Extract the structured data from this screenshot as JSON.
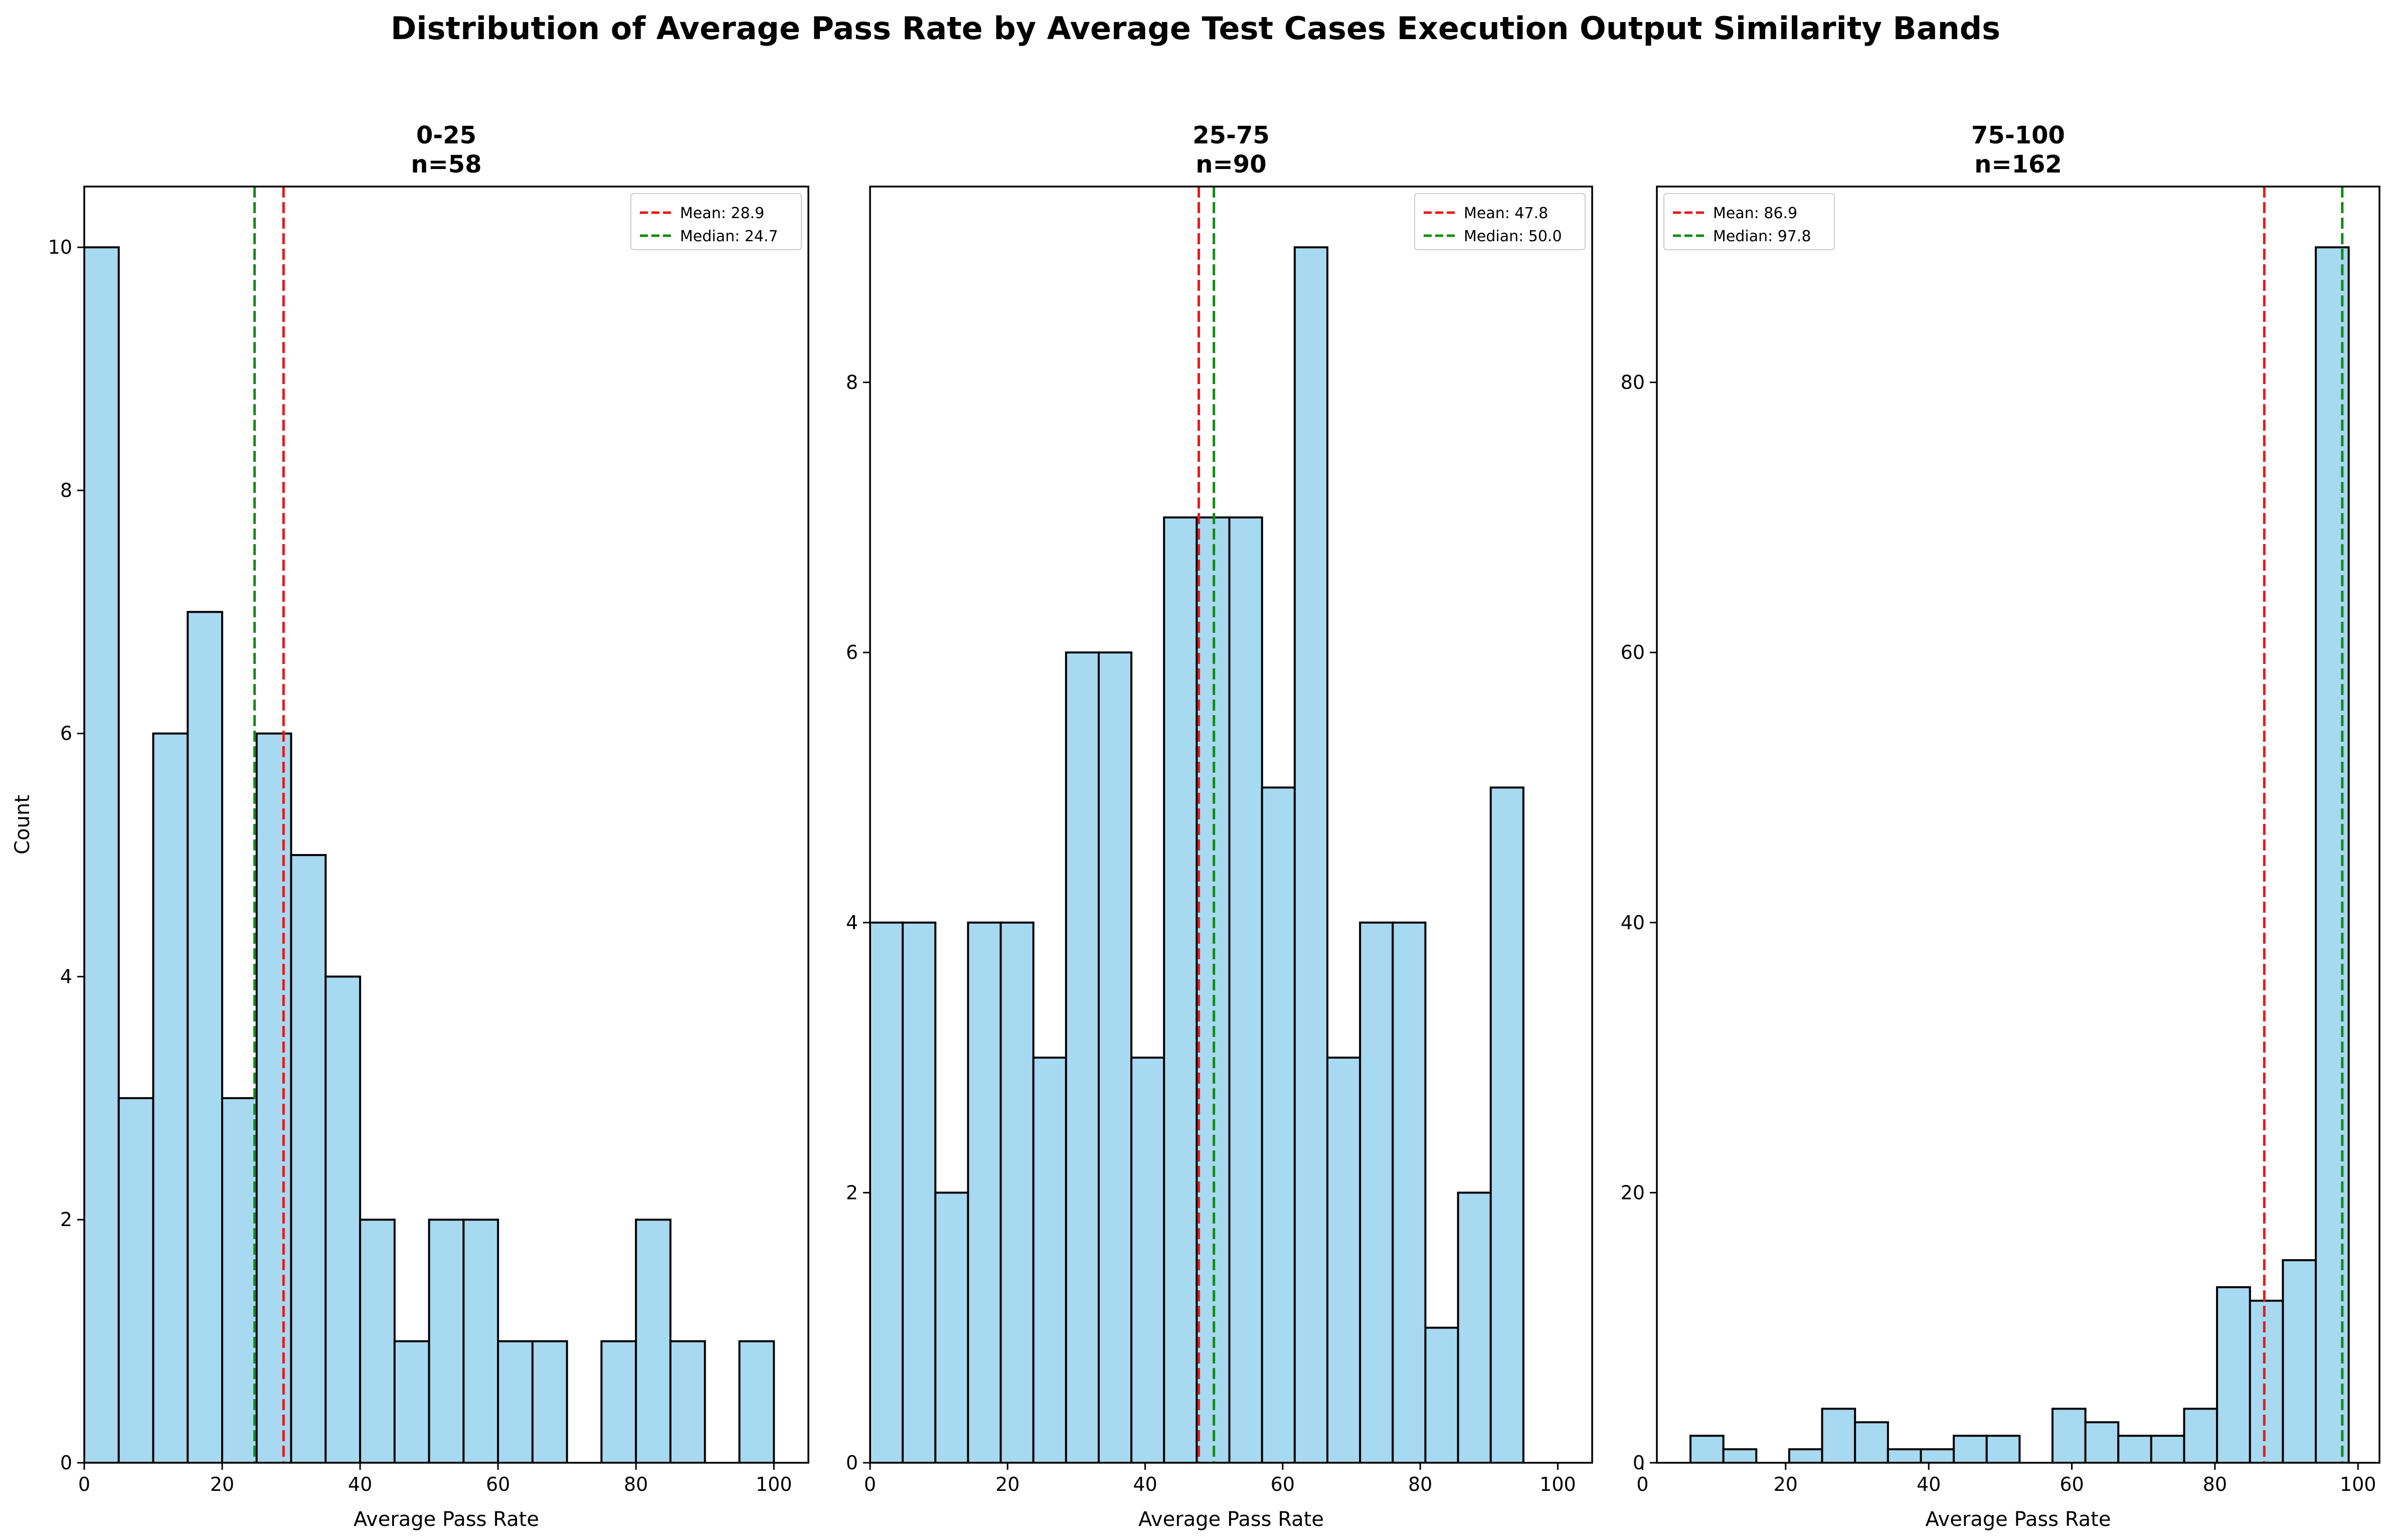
{
  "chart_data": {
    "title": "Distribution of Average Pass Rate by Average Test Cases Execution Output Similarity Bands",
    "panels": [
      {
        "type": "bar",
        "title": "0-25",
        "subtitle": "n=58",
        "xlabel": "Average Pass Rate",
        "ylabel": "Count",
        "xlim": [
          0,
          105
        ],
        "ylim": [
          0,
          10.5
        ],
        "xticks": [
          0,
          20,
          40,
          60,
          80,
          100
        ],
        "yticks": [
          0,
          2,
          4,
          6,
          8,
          10
        ],
        "bin_edges": [
          0,
          5,
          10,
          15,
          20,
          25,
          30,
          35,
          40,
          45,
          50,
          55,
          60,
          65,
          70,
          75,
          80,
          85,
          90,
          95,
          100
        ],
        "counts": [
          10,
          3,
          6,
          7,
          3,
          6,
          5,
          4,
          2,
          1,
          2,
          2,
          1,
          1,
          0,
          1,
          2,
          1,
          0,
          1
        ],
        "mean": 28.9,
        "median": 24.7,
        "mean_label": "Mean: 28.9",
        "median_label": "Median: 24.7",
        "legend_position": "upper right"
      },
      {
        "type": "bar",
        "title": "25-75",
        "subtitle": "n=90",
        "xlabel": "Average Pass Rate",
        "ylabel": "",
        "xlim": [
          0,
          105
        ],
        "ylim": [
          0,
          9.45
        ],
        "xticks": [
          0,
          20,
          40,
          60,
          80,
          100
        ],
        "yticks": [
          0,
          2,
          4,
          6,
          8
        ],
        "bin_edges": [
          0,
          4.75,
          9.5,
          14.25,
          19,
          23.75,
          28.5,
          33.25,
          38,
          42.75,
          47.5,
          52.25,
          57,
          61.75,
          66.5,
          71.25,
          76,
          80.75,
          85.5,
          90.25,
          95
        ],
        "counts": [
          4,
          4,
          2,
          4,
          4,
          3,
          6,
          6,
          3,
          7,
          7,
          7,
          5,
          9,
          3,
          4,
          4,
          1,
          2,
          5
        ],
        "mean": 47.8,
        "median": 50.0,
        "mean_label": "Mean: 47.8",
        "median_label": "Median: 50.0",
        "legend_position": "upper right"
      },
      {
        "type": "bar",
        "title": "75-100",
        "subtitle": "n=162",
        "xlabel": "Average Pass Rate",
        "ylabel": "",
        "xlim": [
          2,
          103
        ],
        "ylim": [
          0,
          94.5
        ],
        "xticks": [
          0,
          20,
          40,
          60,
          80,
          100
        ],
        "yticks": [
          0,
          20,
          40,
          60,
          80
        ],
        "bin_edges": [
          6.7,
          11.3,
          15.9,
          20.5,
          25.1,
          29.7,
          34.3,
          38.9,
          43.5,
          48.1,
          52.7,
          57.3,
          61.9,
          66.5,
          71.1,
          75.7,
          80.3,
          84.9,
          89.5,
          94.1,
          98.7
        ],
        "counts": [
          2,
          1,
          0,
          1,
          4,
          3,
          1,
          1,
          2,
          2,
          0,
          4,
          3,
          2,
          2,
          4,
          13,
          12,
          15,
          90
        ],
        "mean": 86.9,
        "median": 97.8,
        "mean_label": "Mean: 86.9",
        "median_label": "Median: 97.8",
        "legend_position": "upper left"
      }
    ],
    "colors": {
      "bar_fill": "#a7d9f0",
      "bar_edge": "#000000",
      "mean_line": "#e8191c",
      "median_line": "#138a13"
    }
  }
}
